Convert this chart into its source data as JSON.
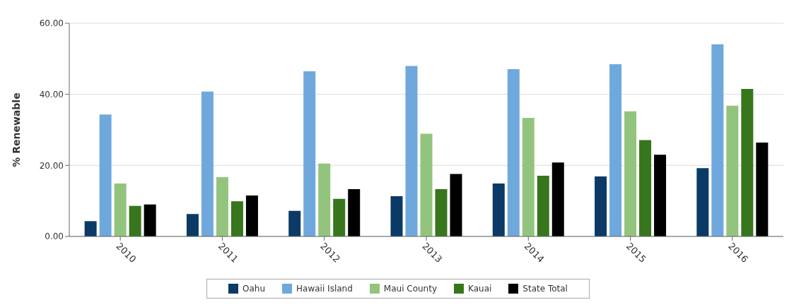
{
  "chart_data": {
    "type": "bar",
    "ylabel": "% Renewable",
    "categories": [
      "2010",
      "2011",
      "2012",
      "2013",
      "2014",
      "2015",
      "2016"
    ],
    "series": [
      {
        "name": "Oahu",
        "color": "#0b3a66",
        "values": [
          4.3,
          6.3,
          7.2,
          11.3,
          14.9,
          16.9,
          19.2
        ]
      },
      {
        "name": "Hawaii Island",
        "color": "#6fa8dc",
        "values": [
          34.3,
          40.8,
          46.5,
          48.0,
          47.1,
          48.5,
          54.1
        ]
      },
      {
        "name": "Maui County",
        "color": "#93c47d",
        "values": [
          14.9,
          16.7,
          20.5,
          28.9,
          33.4,
          35.2,
          36.8
        ]
      },
      {
        "name": "Kauai",
        "color": "#38761d",
        "values": [
          8.6,
          9.9,
          10.6,
          13.3,
          17.1,
          27.1,
          41.5
        ]
      },
      {
        "name": "State Total",
        "color": "#000000",
        "values": [
          9.0,
          11.5,
          13.3,
          17.6,
          20.8,
          23.0,
          26.4
        ]
      }
    ],
    "ylim": [
      0,
      60
    ],
    "yticks": [
      {
        "value": 0,
        "label": "0.00"
      },
      {
        "value": 20,
        "label": "20.00"
      },
      {
        "value": 40,
        "label": "40.00"
      },
      {
        "value": 60,
        "label": "60.00"
      }
    ],
    "grid": "y",
    "legend": "bottom"
  }
}
